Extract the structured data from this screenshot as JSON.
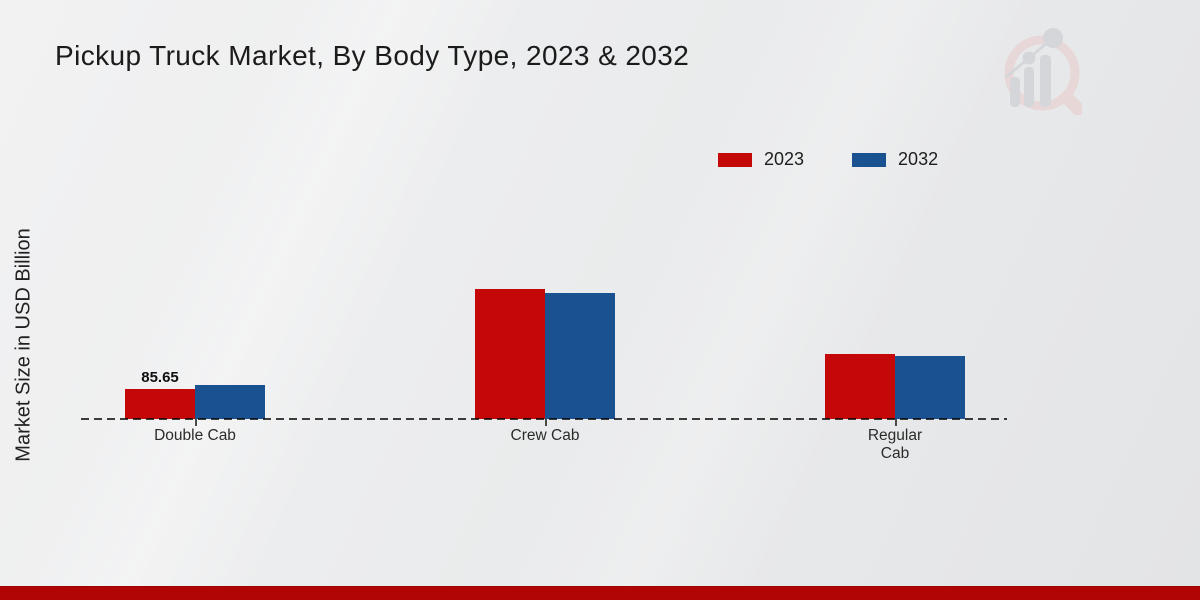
{
  "title": "Pickup Truck Market, By Body Type, 2023 & 2032",
  "y_axis_label": "Market Size in USD Billion",
  "legend": [
    {
      "label": "2023",
      "color": "#c40707"
    },
    {
      "label": "2032",
      "color": "#1a5190"
    }
  ],
  "chart_data": {
    "type": "bar",
    "title": "Pickup Truck Market, By Body Type, 2023 & 2032",
    "categories": [
      "Double Cab",
      "Crew Cab",
      "Regular Cab"
    ],
    "categories_display": [
      [
        "Double Cab"
      ],
      [
        "Crew Cab"
      ],
      [
        "Regular",
        "Cab"
      ]
    ],
    "series": [
      {
        "name": "2023",
        "color": "#c40707",
        "values": [
          85.65,
          371,
          186
        ]
      },
      {
        "name": "2032",
        "color": "#1a5190",
        "values": [
          97,
          360,
          180
        ]
      }
    ],
    "value_labels": [
      {
        "series_index": 0,
        "category_index": 0,
        "text": "85.65"
      }
    ],
    "xlabel": "",
    "ylabel": "Market Size in USD Billion",
    "ylim": [
      0,
      460
    ],
    "grid": false,
    "legend_position": "top-right",
    "baseline_style": "dashed"
  },
  "watermark": {
    "icon": "market-research-future-logo"
  },
  "footer": {
    "accent_bar_color": "#b10505"
  }
}
